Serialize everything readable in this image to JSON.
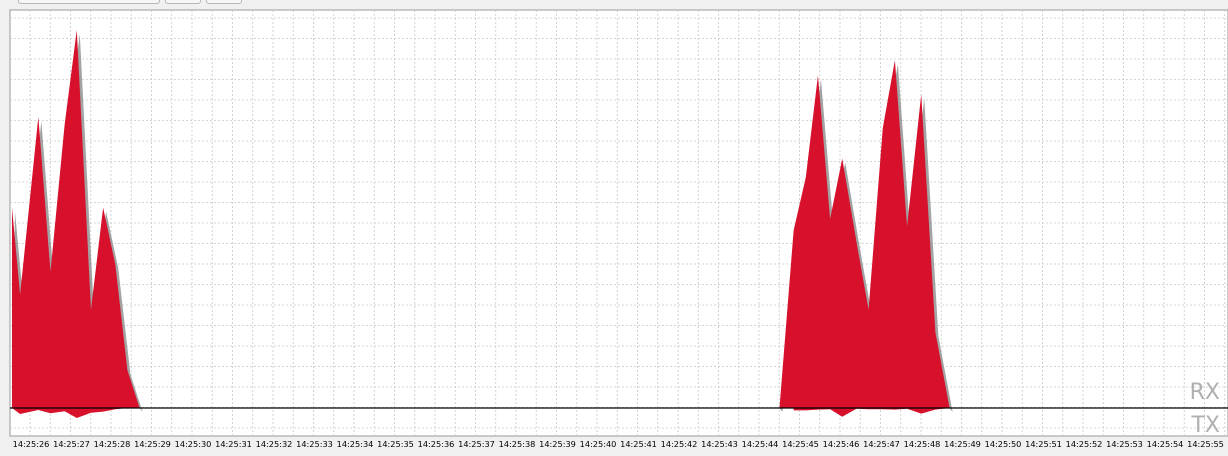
{
  "chart_data": {
    "type": "area",
    "title": "",
    "xlabel": "",
    "ylabel": "",
    "grid": true,
    "x": [
      "14:25:26",
      "14:25:27",
      "14:25:28",
      "14:25:29",
      "14:25:30",
      "14:25:31",
      "14:25:32",
      "14:25:33",
      "14:25:34",
      "14:25:35",
      "14:25:36",
      "14:25:37",
      "14:25:38",
      "14:25:39",
      "14:25:40",
      "14:25:41",
      "14:25:42",
      "14:25:43",
      "14:25:44",
      "14:25:45",
      "14:25:46",
      "14:25:47",
      "14:25:48",
      "14:25:49",
      "14:25:50",
      "14:25:51",
      "14:25:52",
      "14:25:53",
      "14:25:54",
      "14:25:55"
    ],
    "ylim_rx": [
      0,
      100
    ],
    "ylim_tx": [
      0,
      10
    ],
    "series": [
      {
        "name": "RX",
        "color": "#d7102c",
        "shadow_color": "#8c8c8c",
        "points": [
          [
            0.0,
            53
          ],
          [
            0.2,
            30
          ],
          [
            0.65,
            77
          ],
          [
            0.95,
            36
          ],
          [
            1.3,
            75
          ],
          [
            1.6,
            100
          ],
          [
            1.95,
            26
          ],
          [
            2.25,
            53
          ],
          [
            2.55,
            38
          ],
          [
            2.85,
            10
          ],
          [
            3.15,
            0
          ],
          [
            18.95,
            0
          ],
          [
            19.3,
            47
          ],
          [
            19.6,
            61
          ],
          [
            19.9,
            88
          ],
          [
            20.2,
            50
          ],
          [
            20.5,
            66
          ],
          [
            20.85,
            44
          ],
          [
            21.15,
            26
          ],
          [
            21.5,
            74
          ],
          [
            21.8,
            92
          ],
          [
            22.1,
            48
          ],
          [
            22.45,
            83
          ],
          [
            22.8,
            20
          ],
          [
            23.15,
            0
          ]
        ]
      },
      {
        "name": "TX",
        "color": "#d7102c",
        "points": [
          [
            0.0,
            0
          ],
          [
            0.2,
            1.5
          ],
          [
            0.65,
            0.5
          ],
          [
            0.95,
            1.3
          ],
          [
            1.3,
            0.8
          ],
          [
            1.6,
            2.5
          ],
          [
            1.95,
            1.2
          ],
          [
            2.25,
            0.9
          ],
          [
            2.55,
            0.3
          ],
          [
            2.85,
            0
          ],
          [
            3.15,
            0
          ],
          [
            18.95,
            0
          ],
          [
            19.3,
            0.6
          ],
          [
            19.6,
            0.6
          ],
          [
            19.9,
            0.4
          ],
          [
            20.2,
            0.3
          ],
          [
            20.5,
            2.2
          ],
          [
            20.85,
            0.2
          ],
          [
            21.15,
            0.3
          ],
          [
            21.5,
            0.3
          ],
          [
            21.8,
            0.4
          ],
          [
            22.1,
            0.2
          ],
          [
            22.45,
            1.4
          ],
          [
            22.8,
            0.4
          ],
          [
            23.15,
            0
          ]
        ]
      }
    ],
    "legend": {
      "rx_label": "RX",
      "tx_label": "TX",
      "placement": "right"
    },
    "colors": {
      "grid": "#c8c8c8",
      "axis": "#000000",
      "plot_bg": "#ffffff",
      "label": "#b0b0b0"
    }
  }
}
